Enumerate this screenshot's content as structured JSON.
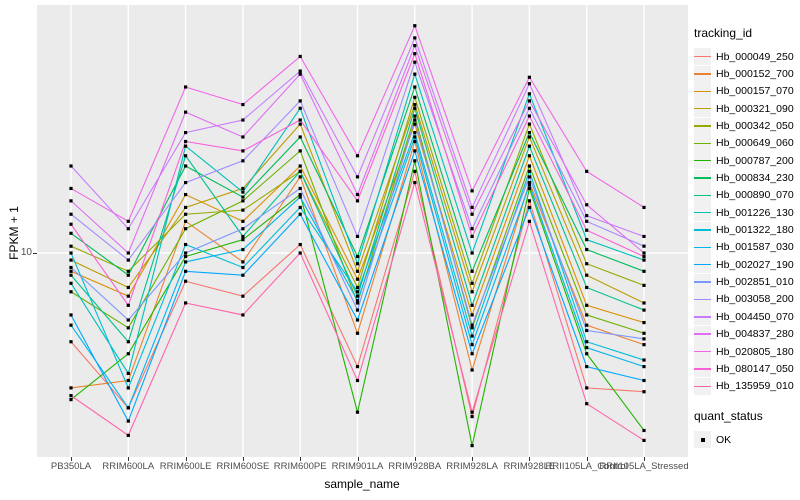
{
  "chart_data": {
    "type": "line",
    "title": "",
    "xlabel": "sample_name",
    "ylabel": "FPKM + 1",
    "yscale": "log10",
    "yticks": [
      "10"
    ],
    "ylim_approx": [
      3.1,
      41
    ],
    "grid": "on",
    "panel_bg": "#EBEBEB",
    "grid_color": "#FFFFFF",
    "marker_color": "#000000",
    "marker_shape": "square",
    "legend_title": "tracking_id",
    "legend_position": "right",
    "quant_legend": {
      "title": "quant_status",
      "items": [
        "OK"
      ]
    },
    "categories": [
      "PB350LA",
      "RRIM600LA",
      "RRIM600LE",
      "RRIM600SE",
      "RRIM600PE",
      "RRIM901LA",
      "RRIM928BA",
      "RRIM928LA",
      "RRIM928LE",
      "RRII105LA_Control",
      "RRII105LA_Stressed"
    ],
    "series": [
      {
        "name": "Hb_000049_250",
        "color": "#F8766D",
        "values": [
          6.0,
          4.1,
          8.5,
          7.8,
          10.5,
          5.2,
          16.0,
          3.9,
          13.5,
          4.6,
          4.5
        ]
      },
      {
        "name": "Hb_000152_700",
        "color": "#EA8331",
        "values": [
          4.6,
          4.8,
          12.0,
          9.5,
          15.5,
          6.3,
          19.0,
          5.1,
          15.0,
          6.6,
          5.9
        ]
      },
      {
        "name": "Hb_000157_070",
        "color": "#D89000",
        "values": [
          9.0,
          7.8,
          14.0,
          12.0,
          16.5,
          8.6,
          21.0,
          7.0,
          17.5,
          7.4,
          6.7
        ]
      },
      {
        "name": "Hb_000321_090",
        "color": "#BB9D00",
        "values": [
          9.6,
          8.2,
          13.0,
          14.5,
          21.0,
          9.0,
          23.5,
          8.0,
          19.5,
          8.8,
          7.5
        ]
      },
      {
        "name": "Hb_000342_050",
        "color": "#97A900",
        "values": [
          10.4,
          9.0,
          12.5,
          12.8,
          16.0,
          8.2,
          24.5,
          8.4,
          21.0,
          9.4,
          8.3
        ]
      },
      {
        "name": "Hb_000649_060",
        "color": "#6BB100",
        "values": [
          8.0,
          6.5,
          11.5,
          13.5,
          18.0,
          7.5,
          22.0,
          6.5,
          16.5,
          7.0,
          6.3
        ]
      },
      {
        "name": "Hb_000787_200",
        "color": "#1FB400",
        "values": [
          4.3,
          5.6,
          9.8,
          10.8,
          14.0,
          4.0,
          17.0,
          3.3,
          14.5,
          5.6,
          3.6
        ]
      },
      {
        "name": "Hb_000834_230",
        "color": "#00BC59",
        "values": [
          11.2,
          8.8,
          16.5,
          13.8,
          19.5,
          9.8,
          26.0,
          9.0,
          20.0,
          10.2,
          9.0
        ]
      },
      {
        "name": "Hb_000890_070",
        "color": "#00C08D",
        "values": [
          8.8,
          6.0,
          17.5,
          11.0,
          16.0,
          7.8,
          23.0,
          7.4,
          18.5,
          8.2,
          7.2
        ]
      },
      {
        "name": "Hb_001226_130",
        "color": "#00C0B8",
        "values": [
          8.4,
          5.0,
          18.5,
          14.2,
          23.0,
          9.4,
          28.0,
          10.0,
          25.0,
          10.8,
          9.6
        ]
      },
      {
        "name": "Hb_001322_180",
        "color": "#00BDD5",
        "values": [
          10.0,
          4.6,
          10.5,
          9.2,
          13.0,
          8.0,
          20.0,
          6.2,
          16.0,
          6.0,
          5.4
        ]
      },
      {
        "name": "Hb_001587_030",
        "color": "#00B5EC",
        "values": [
          6.6,
          4.1,
          9.5,
          10.2,
          13.8,
          7.6,
          19.5,
          5.9,
          14.8,
          5.8,
          5.2
        ]
      },
      {
        "name": "Hb_002027_190",
        "color": "#00A7FF",
        "values": [
          7.0,
          3.8,
          9.0,
          8.8,
          12.5,
          6.8,
          18.0,
          5.6,
          13.0,
          5.2,
          4.8
        ]
      },
      {
        "name": "Hb_002851_010",
        "color": "#7C96FF",
        "values": [
          9.2,
          6.8,
          10.0,
          11.5,
          14.5,
          7.2,
          21.5,
          6.6,
          15.5,
          6.4,
          6.1
        ]
      },
      {
        "name": "Hb_003058_200",
        "color": "#A58AFF",
        "values": [
          12.5,
          9.6,
          15.0,
          17.0,
          24.0,
          11.0,
          30.0,
          11.5,
          23.0,
          12.0,
          10.4
        ]
      },
      {
        "name": "Hb_004450_070",
        "color": "#C77CFF",
        "values": [
          16.5,
          11.5,
          20.0,
          21.5,
          28.5,
          15.5,
          34.5,
          13.0,
          26.5,
          12.4,
          11.0
        ]
      },
      {
        "name": "Hb_004837_280",
        "color": "#E06EF3",
        "values": [
          13.5,
          10.0,
          22.5,
          19.5,
          28.0,
          14.0,
          33.0,
          12.5,
          24.0,
          13.2,
          10.0
        ]
      },
      {
        "name": "Hb_020805_180",
        "color": "#F166E8",
        "values": [
          14.5,
          12.0,
          26.0,
          23.5,
          31.0,
          17.5,
          37.0,
          14.3,
          27.5,
          16.0,
          13.0
        ]
      },
      {
        "name": "Hb_080147_050",
        "color": "#FB61D7",
        "values": [
          11.8,
          7.4,
          19.0,
          18.0,
          21.5,
          13.5,
          31.5,
          11.0,
          22.0,
          11.4,
          9.8
        ]
      },
      {
        "name": "Hb_135959_010",
        "color": "#FF65AC",
        "values": [
          4.4,
          3.5,
          7.5,
          7.0,
          10.0,
          4.8,
          15.0,
          4.0,
          12.0,
          4.2,
          3.4
        ]
      }
    ]
  }
}
